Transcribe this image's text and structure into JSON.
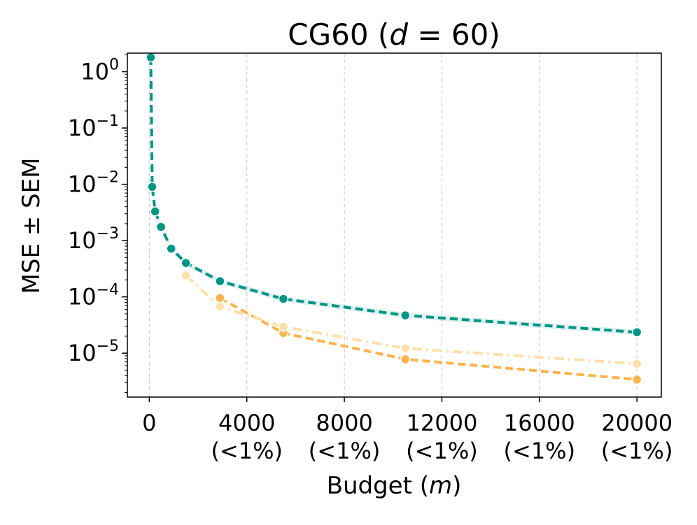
{
  "chart_data": {
    "type": "line",
    "title_prefix": "CG60 (",
    "title_var": "d",
    "title_suffix": " = 60)",
    "xlabel_prefix": "Budget (",
    "xlabel_var": "m",
    "xlabel_suffix": ")",
    "ylabel": "MSE ± SEM",
    "xscale": "linear",
    "yscale": "log",
    "xlim": [
      -900,
      21000
    ],
    "ylim_log10": [
      -5.78,
      0.33
    ],
    "grid": "vertical dashed",
    "x_ticks": [
      {
        "value": 0,
        "label": "0",
        "sublabel": ""
      },
      {
        "value": 4000,
        "label": "4000",
        "sublabel": "(<1%)"
      },
      {
        "value": 8000,
        "label": "8000",
        "sublabel": "(<1%)"
      },
      {
        "value": 12000,
        "label": "12000",
        "sublabel": "(<1%)"
      },
      {
        "value": 16000,
        "label": "16000",
        "sublabel": "(<1%)"
      },
      {
        "value": 20000,
        "label": "20000",
        "sublabel": "(<1%)"
      }
    ],
    "y_ticks": [
      {
        "exp": 0,
        "base": "10",
        "sup": "0"
      },
      {
        "exp": -1,
        "base": "10",
        "sup": "−1"
      },
      {
        "exp": -2,
        "base": "10",
        "sup": "−2"
      },
      {
        "exp": -3,
        "base": "10",
        "sup": "−3"
      },
      {
        "exp": -4,
        "base": "10",
        "sup": "−4"
      },
      {
        "exp": -5,
        "base": "10",
        "sup": "−5"
      }
    ],
    "series": [
      {
        "color": "#009485",
        "linestyle": "dashed",
        "band": true,
        "x": [
          60,
          120,
          240,
          480,
          900,
          1500,
          2900,
          5500,
          10500,
          20000
        ],
        "y": [
          1.8,
          0.009,
          0.0033,
          0.00175,
          0.00072,
          0.0004,
          0.00019,
          9.2e-05,
          4.7e-05,
          2.35e-05
        ]
      },
      {
        "color": "#FDB44B",
        "linestyle": "dashed",
        "band": false,
        "x": [
          2900,
          5500,
          10500,
          20000
        ],
        "y": [
          9.5e-05,
          2.28e-05,
          7.8e-06,
          3.4e-06
        ]
      },
      {
        "color": "#FDE0AC",
        "linestyle": "dashdot",
        "band": false,
        "x": [
          1500,
          2900,
          5500,
          10500,
          20000
        ],
        "y": [
          0.00024,
          6.7e-05,
          2.95e-05,
          1.22e-05,
          6.5e-06
        ]
      }
    ]
  }
}
